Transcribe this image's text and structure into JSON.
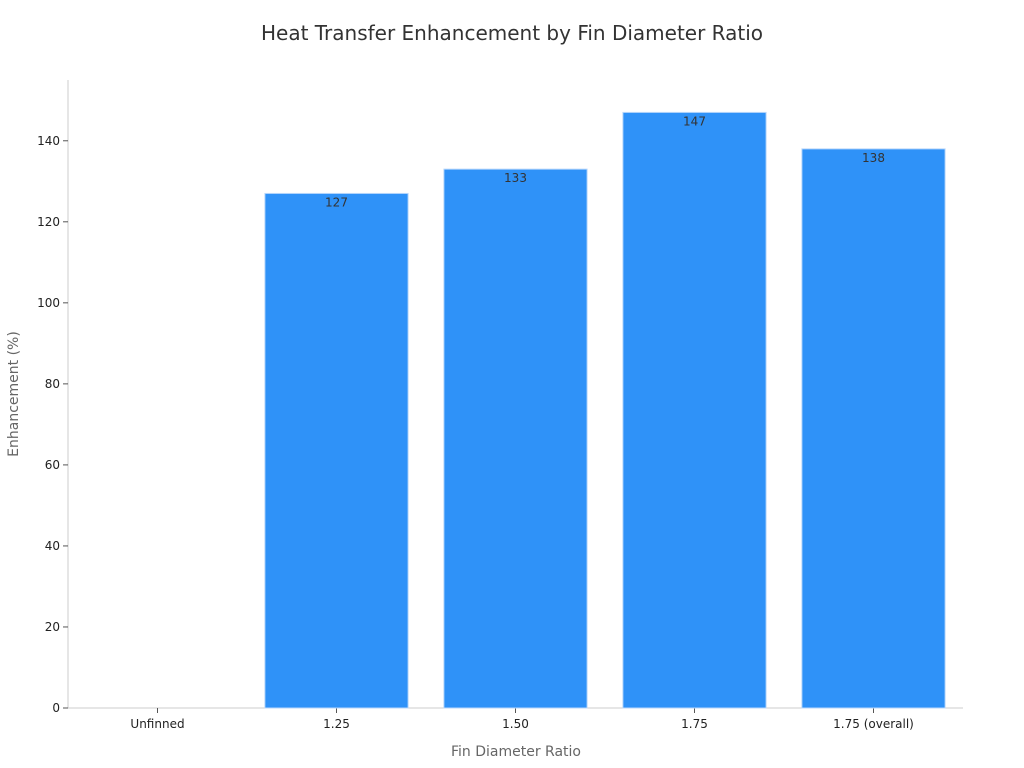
{
  "chart_data": {
    "type": "bar",
    "title": "Heat Transfer Enhancement by Fin Diameter Ratio",
    "xlabel": "Fin Diameter Ratio",
    "ylabel": "Enhancement (%)",
    "categories": [
      "Unfinned",
      "1.25",
      "1.50",
      "1.75",
      "1.75 (overall)"
    ],
    "values": [
      0,
      127,
      133,
      147,
      138
    ],
    "data_labels": [
      "",
      "127",
      "133",
      "147",
      "138"
    ],
    "ylim": [
      0,
      155
    ],
    "yticks": [
      0,
      20,
      40,
      60,
      80,
      100,
      120,
      140
    ],
    "bar_color": "#2f92f8",
    "bar_edge_color": "#b9d7fb",
    "grid": false,
    "legend": "none"
  }
}
